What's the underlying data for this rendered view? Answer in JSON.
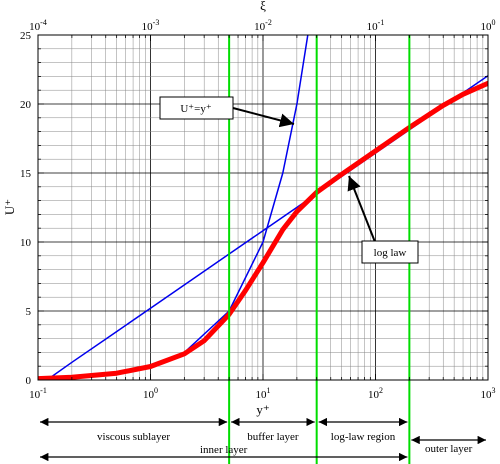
{
  "chart_data": {
    "type": "line",
    "xlabel": "y⁺",
    "ylabel": "U⁺",
    "top_xlabel": "ξ",
    "xscale": "log",
    "xlim": [
      0.1,
      1000
    ],
    "ylim": [
      0,
      25
    ],
    "top_xlim": [
      0.0001,
      1
    ],
    "grid": true,
    "x_tick_labels": [
      {
        "base": "10",
        "exp": "-1"
      },
      {
        "base": "10",
        "exp": "0"
      },
      {
        "base": "10",
        "exp": "1"
      },
      {
        "base": "10",
        "exp": "2"
      },
      {
        "base": "10",
        "exp": "3"
      }
    ],
    "top_tick_labels": [
      {
        "base": "10",
        "exp": "-4"
      },
      {
        "base": "10",
        "exp": "-3"
      },
      {
        "base": "10",
        "exp": "-2"
      },
      {
        "base": "10",
        "exp": "-1"
      },
      {
        "base": "10",
        "exp": "0"
      }
    ],
    "y_ticks": [
      0,
      5,
      10,
      15,
      20,
      25
    ],
    "series": [
      {
        "name": "U⁺=y⁺",
        "color": "#0000ee",
        "x": [
          0.1,
          0.2,
          0.5,
          1,
          2,
          5,
          10,
          15,
          20,
          25
        ],
        "y": [
          0.1,
          0.2,
          0.5,
          1,
          2,
          5,
          10,
          15,
          20,
          25
        ]
      },
      {
        "name": "log law",
        "color": "#0000ee",
        "x": [
          0.12,
          0.2,
          0.5,
          1,
          2,
          5,
          10,
          20,
          50,
          100,
          200,
          500,
          1000
        ],
        "y": [
          0,
          1.28,
          3.51,
          5.2,
          6.89,
          9.13,
          10.82,
          12.51,
          14.75,
          16.44,
          18.13,
          20.36,
          22.05
        ]
      },
      {
        "name": "",
        "color": "#ff0000",
        "x": [
          0.1,
          0.2,
          0.5,
          1,
          2,
          3,
          5,
          7,
          10,
          15,
          20,
          30,
          50,
          100,
          200,
          400,
          600,
          1000
        ],
        "y": [
          0.1,
          0.2,
          0.49,
          0.98,
          1.9,
          2.85,
          4.75,
          6.5,
          8.5,
          10.9,
          12.2,
          13.6,
          14.9,
          16.6,
          18.3,
          19.9,
          20.7,
          21.5
        ]
      }
    ],
    "vertical_lines": {
      "color": "#00dd00",
      "x": [
        5,
        30,
        200
      ]
    },
    "annotations": [
      {
        "text": "U⁺=y⁺",
        "box": true
      },
      {
        "text": "log law",
        "box": true
      }
    ],
    "regions": [
      {
        "label": "viscous sublayer",
        "x_from": 0.1,
        "x_to": 5
      },
      {
        "label": "buffer layer",
        "x_from": 5,
        "x_to": 30
      },
      {
        "label": "log-law region",
        "x_from": 30,
        "x_to": 200
      },
      {
        "label": "inner layer",
        "x_from": 0.1,
        "x_to": 200
      },
      {
        "label": "outer layer",
        "x_from": 200,
        "x_to": 1000
      }
    ]
  }
}
